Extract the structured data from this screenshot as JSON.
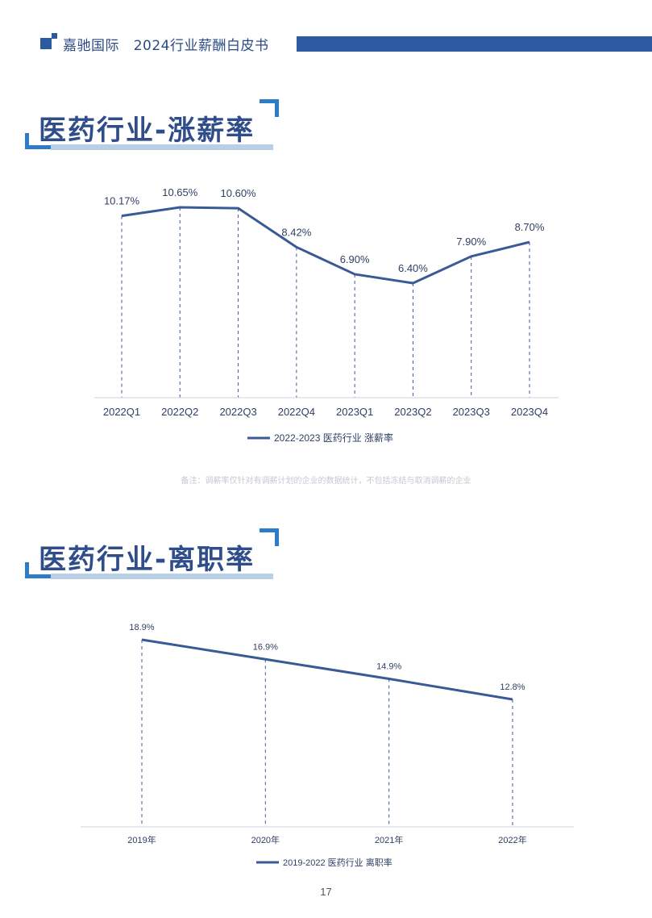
{
  "header": {
    "brand": "嘉驰国际",
    "title": "2024行业薪酬白皮书"
  },
  "section1": {
    "title": "医药行业-涨薪率"
  },
  "section2": {
    "title": "医药行业-离职率"
  },
  "note": "备注：调薪率仅针对有调薪计划的企业的数据统计，不包括冻结与取消调薪的企业",
  "page_number": "17",
  "colors": {
    "brand": "#2c5aa0",
    "line": "#3a5a96",
    "accent": "#2c7cc9",
    "underbar": "#b8cfe6"
  },
  "chart_data": [
    {
      "type": "line",
      "categories": [
        "2022Q1",
        "2022Q2",
        "2022Q3",
        "2022Q4",
        "2023Q1",
        "2023Q2",
        "2023Q3",
        "2023Q4"
      ],
      "values": [
        10.17,
        10.65,
        10.6,
        8.42,
        6.9,
        6.4,
        7.9,
        8.7
      ],
      "data_labels": [
        "10.17%",
        "10.65%",
        "10.60%",
        "8.42%",
        "6.90%",
        "6.40%",
        "7.90%",
        "8.70%"
      ],
      "series": [
        {
          "name": "2022-2023 医药行业 涨薪率"
        }
      ],
      "legend_position": "bottom",
      "grid": false
    },
    {
      "type": "line",
      "categories": [
        "2019年",
        "2020年",
        "2021年",
        "2022年"
      ],
      "values": [
        18.9,
        16.9,
        14.9,
        12.8
      ],
      "data_labels": [
        "18.9%",
        "16.9%",
        "14.9%",
        "12.8%"
      ],
      "series": [
        {
          "name": "2019-2022 医药行业 离职率"
        }
      ],
      "legend_position": "bottom",
      "grid": false
    }
  ]
}
